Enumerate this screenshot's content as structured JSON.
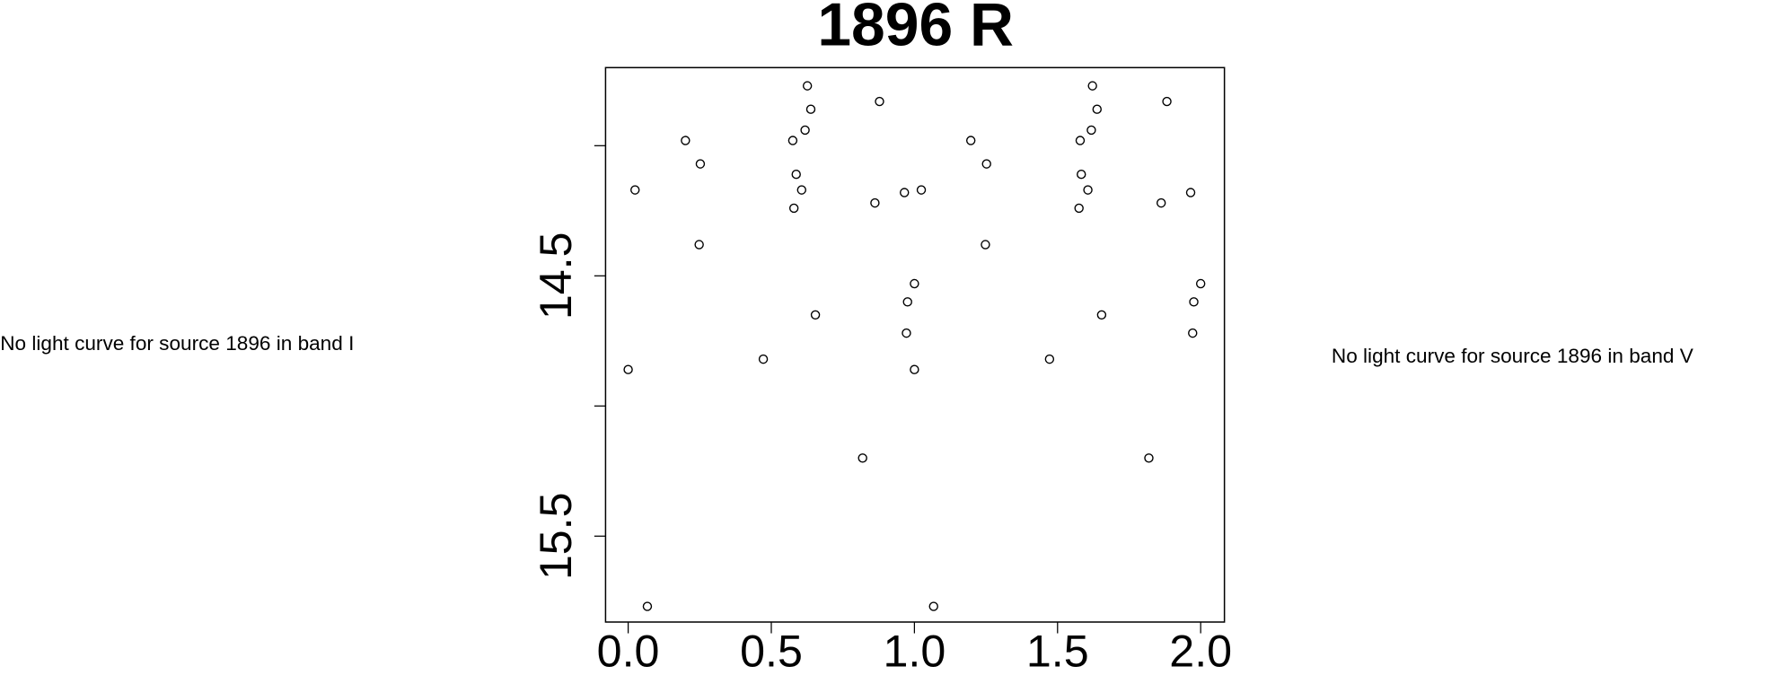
{
  "chart_data": {
    "type": "scatter",
    "title": "1896 R",
    "annotations": [
      "No light curve for source 1896 in band I",
      "No light curve for source 1896 in band V"
    ],
    "x": [
      0.0,
      0.024,
      0.067,
      0.2,
      0.252,
      0.248,
      0.472,
      0.575,
      0.587,
      0.606,
      0.579,
      0.618,
      0.626,
      0.638,
      0.654,
      0.819,
      0.862,
      0.878,
      0.965,
      0.976,
      0.972,
      1.0,
      1.0,
      1.024,
      1.067,
      1.197,
      1.252,
      1.248,
      1.472,
      1.579,
      1.583,
      1.606,
      1.575,
      1.618,
      1.622,
      1.638,
      1.654,
      1.819,
      1.862,
      1.882,
      1.965,
      1.976,
      1.972,
      2.0
    ],
    "values": [
      14.86,
      14.17,
      15.77,
      13.98,
      14.07,
      14.38,
      14.82,
      13.98,
      14.11,
      14.17,
      14.24,
      13.94,
      13.77,
      13.86,
      14.65,
      15.2,
      14.22,
      13.83,
      14.18,
      14.6,
      14.72,
      14.53,
      14.86,
      14.17,
      15.77,
      13.98,
      14.07,
      14.38,
      14.82,
      13.98,
      14.11,
      14.17,
      14.24,
      13.94,
      13.77,
      13.86,
      14.65,
      15.2,
      14.22,
      13.83,
      14.18,
      14.6,
      14.72,
      14.53
    ],
    "color": "#000000",
    "xlim": [
      -0.079,
      2.083
    ],
    "ylim": [
      15.83,
      13.7
    ],
    "xticks": [
      {
        "value": 0,
        "label": "0.0"
      },
      0.5,
      {
        "value": 1,
        "label": "1.0"
      },
      1.5,
      {
        "value": 2,
        "label": "2.0"
      }
    ],
    "yticks": [
      {
        "value": 14,
        "label": null
      },
      14.5,
      {
        "value": 15,
        "label": null
      },
      15.5
    ]
  }
}
